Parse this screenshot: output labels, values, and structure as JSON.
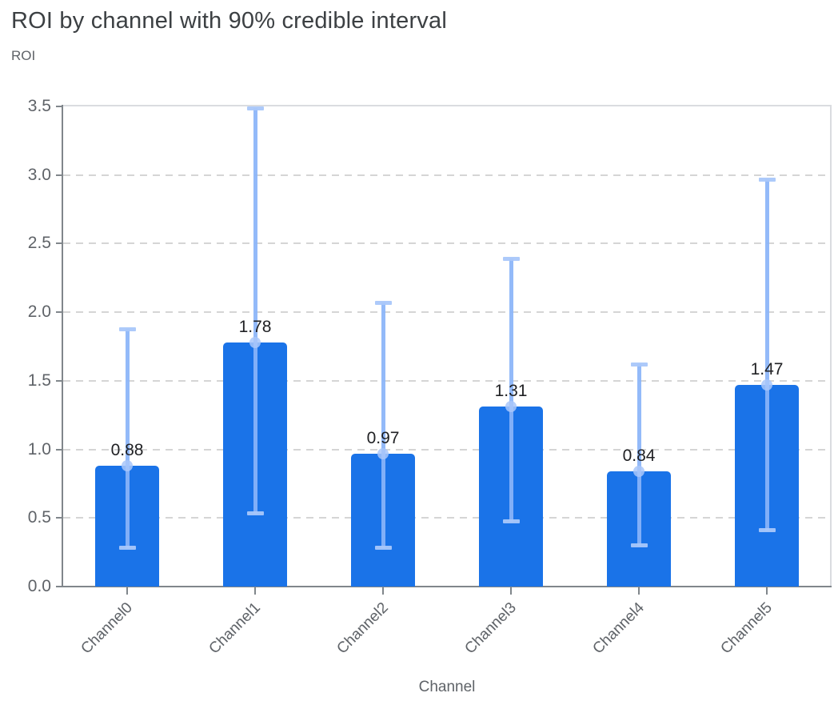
{
  "header": {
    "title": "ROI by channel with 90% credible interval",
    "y_axis_title": "ROI"
  },
  "chart_data": {
    "type": "bar",
    "title": "ROI by channel with 90% credible interval",
    "xlabel": "Channel",
    "ylabel": "ROI",
    "categories": [
      "Channel0",
      "Channel1",
      "Channel2",
      "Channel3",
      "Channel4",
      "Channel5"
    ],
    "values": [
      0.88,
      1.78,
      0.97,
      1.31,
      0.84,
      1.47
    ],
    "bar_labels": [
      "0.88",
      "1.78",
      "0.97",
      "1.31",
      "0.84",
      "1.47"
    ],
    "error_low": [
      0.28,
      0.53,
      0.28,
      0.47,
      0.3,
      0.41
    ],
    "error_high": [
      1.88,
      3.49,
      2.07,
      2.39,
      1.62,
      2.97
    ],
    "ylim": [
      0,
      3.5
    ],
    "ytick_labels": [
      "0.0",
      "0.5",
      "1.0",
      "1.5",
      "2.0",
      "2.5",
      "3.0",
      "3.5"
    ],
    "grid": "horizontal-dashed",
    "legend": null,
    "colors": {
      "bar": "#1a73e8",
      "error_line": "#8ab4f8",
      "error_cap": "#a9c7fa",
      "error_dot": "#a9c7fa",
      "gridline": "#d5d5d5",
      "axis_line": "#80868b",
      "plot_border": "#dadce0",
      "title_text": "#3c4043",
      "axis_text": "#5f6368",
      "value_text": "#202124"
    }
  }
}
